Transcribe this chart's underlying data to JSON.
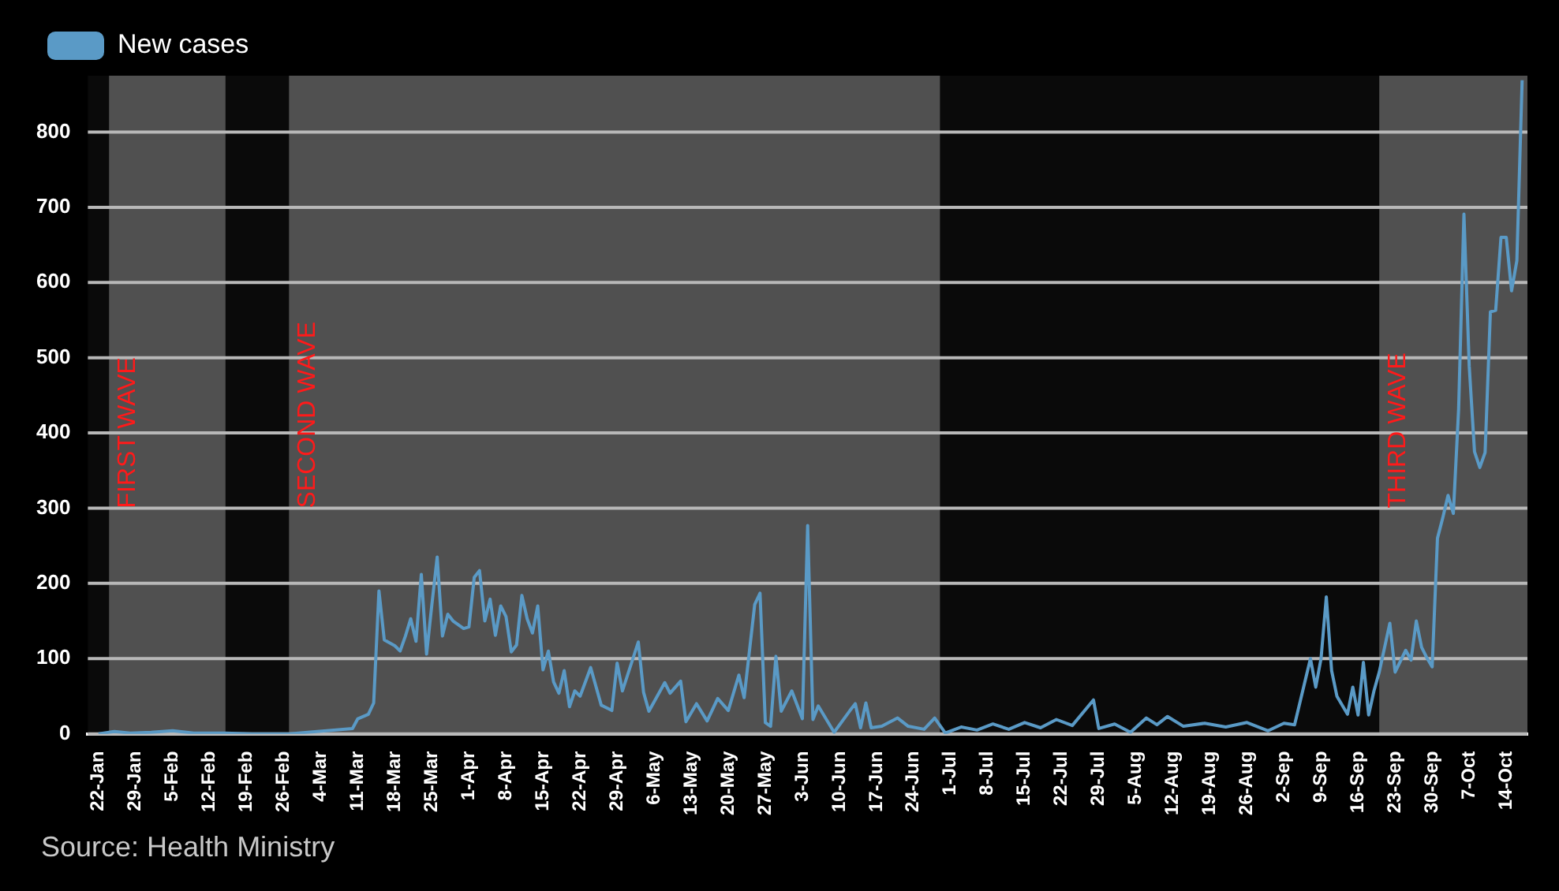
{
  "chart_data": {
    "type": "line",
    "legend": "top left",
    "grid": "y",
    "marker": "none",
    "line_style": "solid",
    "xlim": [
      "--01-20",
      "--10-18"
    ],
    "ylim": [
      0,
      875
    ],
    "yticks": [
      0,
      100,
      200,
      300,
      400,
      500,
      600,
      700,
      800
    ],
    "xticks": [
      {
        "value": "--01-22",
        "label": "22-Jan"
      },
      {
        "value": "--01-29",
        "label": "29-Jan"
      },
      {
        "value": "--02-05",
        "label": "5-Feb"
      },
      {
        "value": "--02-12",
        "label": "12-Feb"
      },
      {
        "value": "--02-19",
        "label": "19-Feb"
      },
      {
        "value": "--02-26",
        "label": "26-Feb"
      },
      {
        "value": "--03-04",
        "label": "4-Mar"
      },
      {
        "value": "--03-11",
        "label": "11-Mar"
      },
      {
        "value": "--03-18",
        "label": "18-Mar"
      },
      {
        "value": "--03-25",
        "label": "25-Mar"
      },
      {
        "value": "--04-01",
        "label": "1-Apr"
      },
      {
        "value": "--04-08",
        "label": "8-Apr"
      },
      {
        "value": "--04-15",
        "label": "15-Apr"
      },
      {
        "value": "--04-22",
        "label": "22-Apr"
      },
      {
        "value": "--04-29",
        "label": "29-Apr"
      },
      {
        "value": "--05-06",
        "label": "6-May"
      },
      {
        "value": "--05-13",
        "label": "13-May"
      },
      {
        "value": "--05-20",
        "label": "20-May"
      },
      {
        "value": "--05-27",
        "label": "27-May"
      },
      {
        "value": "--06-03",
        "label": "3-Jun"
      },
      {
        "value": "--06-10",
        "label": "10-Jun"
      },
      {
        "value": "--06-17",
        "label": "17-Jun"
      },
      {
        "value": "--06-24",
        "label": "24-Jun"
      },
      {
        "value": "--07-01",
        "label": "1-Jul"
      },
      {
        "value": "--07-08",
        "label": "8-Jul"
      },
      {
        "value": "--07-15",
        "label": "15-Jul"
      },
      {
        "value": "--07-22",
        "label": "22-Jul"
      },
      {
        "value": "--07-29",
        "label": "29-Jul"
      },
      {
        "value": "--08-05",
        "label": "5-Aug"
      },
      {
        "value": "--08-12",
        "label": "12-Aug"
      },
      {
        "value": "--08-19",
        "label": "19-Aug"
      },
      {
        "value": "--08-26",
        "label": "26-Aug"
      },
      {
        "value": "--09-02",
        "label": "2-Sep"
      },
      {
        "value": "--09-09",
        "label": "9-Sep"
      },
      {
        "value": "--09-16",
        "label": "16-Sep"
      },
      {
        "value": "--09-23",
        "label": "23-Sep"
      },
      {
        "value": "--09-30",
        "label": "30-Sep"
      },
      {
        "value": "--10-07",
        "label": "7-Oct"
      },
      {
        "value": "--10-14",
        "label": "14-Oct"
      }
    ],
    "bands": [
      {
        "axis": "x",
        "from": "--01-24",
        "to": "--02-15",
        "label": "FIRST WAVE",
        "color": "#505050"
      },
      {
        "axis": "x",
        "from": "--02-27",
        "to": "--06-29",
        "label": "SECOND WAVE",
        "color": "#505050"
      },
      {
        "axis": "x",
        "from": "--09-20",
        "to": "--10-18",
        "label": "THIRD WAVE",
        "color": "#505050"
      }
    ],
    "annotations": [
      "Source: Health Ministry"
    ],
    "x": [
      "--01-22",
      "--01-25",
      "--01-28",
      "--02-01",
      "--02-05",
      "--02-09",
      "--02-15",
      "--02-20",
      "--02-27",
      "--03-10",
      "--03-11",
      "--03-13",
      "--03-14",
      "--03-15",
      "--03-16",
      "--03-18",
      "--03-19",
      "--03-20",
      "--03-21",
      "--03-22",
      "--03-23",
      "--03-24",
      "--03-25",
      "--03-26",
      "--03-27",
      "--03-28",
      "--03-29",
      "--03-31",
      "--04-01",
      "--04-02",
      "--04-03",
      "--04-04",
      "--04-05",
      "--04-06",
      "--04-07",
      "--04-08",
      "--04-09",
      "--04-10",
      "--04-11",
      "--04-12",
      "--04-13",
      "--04-14",
      "--04-15",
      "--04-16",
      "--04-17",
      "--04-18",
      "--04-19",
      "--04-20",
      "--04-21",
      "--04-22",
      "--04-24",
      "--04-26",
      "--04-28",
      "--04-29",
      "--04-30",
      "--05-03",
      "--05-04",
      "--05-05",
      "--05-08",
      "--05-09",
      "--05-11",
      "--05-12",
      "--05-14",
      "--05-16",
      "--05-18",
      "--05-20",
      "--05-22",
      "--05-23",
      "--05-25",
      "--05-26",
      "--05-27",
      "--05-28",
      "--05-29",
      "--05-30",
      "--06-01",
      "--06-03",
      "--06-04",
      "--06-05",
      "--06-06",
      "--06-09",
      "--06-12",
      "--06-13",
      "--06-14",
      "--06-15",
      "--06-16",
      "--06-18",
      "--06-21",
      "--06-23",
      "--06-26",
      "--06-28",
      "--06-30",
      "--07-03",
      "--07-06",
      "--07-09",
      "--07-12",
      "--07-15",
      "--07-18",
      "--07-21",
      "--07-24",
      "--07-28",
      "--07-29",
      "--08-01",
      "--08-04",
      "--08-07",
      "--08-09",
      "--08-11",
      "--08-14",
      "--08-18",
      "--08-22",
      "--08-26",
      "--08-30",
      "--09-02",
      "--09-04",
      "--09-07",
      "--09-08",
      "--09-09",
      "--09-10",
      "--09-11",
      "--09-12",
      "--09-14",
      "--09-15",
      "--09-16",
      "--09-17",
      "--09-18",
      "--09-19",
      "--09-20",
      "--09-22",
      "--09-23",
      "--09-25",
      "--09-26",
      "--09-27",
      "--09-28",
      "--09-29",
      "--09-30",
      "--10-01",
      "--10-02",
      "--10-03",
      "--10-04",
      "--10-05",
      "--10-06",
      "--10-07",
      "--10-08",
      "--10-09",
      "--10-10",
      "--10-11",
      "--10-12",
      "--10-13",
      "--10-14",
      "--10-15",
      "--10-16",
      "--10-17"
    ],
    "series": [
      {
        "name": "New cases",
        "color": "#5a9ac6",
        "values": [
          0,
          3,
          1,
          2,
          4,
          1,
          1,
          0,
          0,
          7,
          20,
          26,
          41,
          190,
          125,
          117,
          110,
          130,
          153,
          123,
          212,
          106,
          172,
          235,
          130,
          159,
          150,
          140,
          142,
          208,
          217,
          150,
          179,
          131,
          170,
          156,
          109,
          118,
          184,
          153,
          134,
          170,
          85,
          110,
          69,
          54,
          84,
          36,
          57,
          50,
          88,
          38,
          31,
          94,
          57,
          122,
          55,
          30,
          68,
          54,
          70,
          16,
          40,
          17,
          47,
          31,
          78,
          48,
          172,
          187,
          15,
          10,
          103,
          30,
          57,
          20,
          277,
          19,
          37,
          2,
          31,
          40,
          8,
          41,
          8,
          10,
          21,
          10,
          6,
          21,
          1,
          9,
          5,
          13,
          6,
          15,
          8,
          19,
          11,
          45,
          7,
          13,
          2,
          21,
          12,
          23,
          10,
          14,
          9,
          15,
          4,
          14,
          12,
          100,
          62,
          100,
          182,
          84,
          50,
          26,
          62,
          25,
          95,
          25,
          57,
          82,
          147,
          82,
          111,
          98,
          150,
          115,
          101,
          89,
          260,
          287,
          317,
          293,
          432,
          691,
          489,
          375,
          354,
          374,
          561,
          563,
          660,
          660,
          589,
          629,
          869
        ]
      }
    ]
  }
}
